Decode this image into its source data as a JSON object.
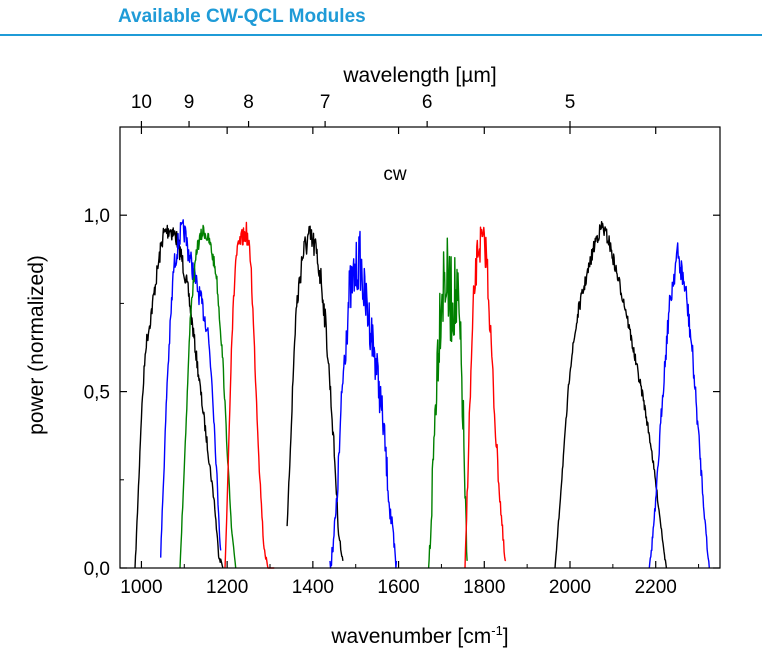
{
  "header": {
    "title": "Available  CW-QCL Modules",
    "accent_color": "#1f9bd7"
  },
  "chart_data": {
    "type": "line",
    "annotation": "cw",
    "xlabel": "wavenumber [cm",
    "xlabel_superscript": "-1",
    "xlabel_suffix": "]",
    "ylabel": "power (normalized)",
    "top_axis_label": "wavelength [µm]",
    "xlim": [
      950,
      2350
    ],
    "ylim": [
      0,
      1.25
    ],
    "grid": false,
    "x_ticks": [
      1000,
      1200,
      1400,
      1600,
      1800,
      2000,
      2200
    ],
    "x_tick_labels": [
      "1000",
      "1200",
      "1400",
      "1600",
      "1800",
      "2000",
      "2200"
    ],
    "y_ticks": [
      0,
      0.5,
      1.0
    ],
    "y_tick_labels": [
      "0,0",
      "0,5",
      "1,0"
    ],
    "top_ticks_um": [
      10,
      9,
      8,
      7,
      6,
      5
    ],
    "top_tick_labels": [
      "10",
      "9",
      "8",
      "7",
      "6",
      "5"
    ],
    "series": [
      {
        "color": "#000000",
        "noise": 0.04,
        "x": [
          985,
          1000,
          1010,
          1020,
          1035,
          1050,
          1065,
          1080,
          1095,
          1110,
          1125,
          1140,
          1155,
          1170,
          1180,
          1190
        ],
        "y": [
          0.0,
          0.45,
          0.65,
          0.72,
          0.85,
          0.97,
          0.99,
          0.97,
          0.9,
          0.8,
          0.65,
          0.5,
          0.35,
          0.2,
          0.05,
          0.0
        ]
      },
      {
        "color": "#0000ff",
        "noise": 0.05,
        "x": [
          1045,
          1060,
          1075,
          1090,
          1100,
          1110,
          1125,
          1140,
          1155,
          1165,
          1175,
          1185
        ],
        "y": [
          0.05,
          0.55,
          0.88,
          0.98,
          0.99,
          0.93,
          0.85,
          0.78,
          0.7,
          0.55,
          0.3,
          0.05
        ]
      },
      {
        "color": "#008000",
        "noise": 0.03,
        "x": [
          1090,
          1100,
          1115,
          1130,
          1145,
          1160,
          1175,
          1190,
          1200,
          1210,
          1220
        ],
        "y": [
          0.0,
          0.3,
          0.75,
          0.93,
          0.98,
          0.94,
          0.85,
          0.6,
          0.35,
          0.12,
          0.0
        ]
      },
      {
        "color": "#ff0000",
        "noise": 0.04,
        "x": [
          1195,
          1200,
          1210,
          1220,
          1230,
          1245,
          1255,
          1265,
          1275,
          1285,
          1295,
          1305,
          1310
        ],
        "y": [
          0.0,
          0.2,
          0.65,
          0.9,
          0.95,
          0.98,
          0.9,
          0.6,
          0.3,
          0.08,
          0.0,
          0.0,
          0.0
        ]
      },
      {
        "color": "#000000",
        "noise": 0.06,
        "x": [
          1340,
          1350,
          1360,
          1375,
          1390,
          1405,
          1420,
          1430,
          1440,
          1450,
          1460,
          1470
        ],
        "y": [
          0.12,
          0.45,
          0.75,
          0.92,
          0.98,
          0.95,
          0.85,
          0.72,
          0.55,
          0.35,
          0.12,
          0.02
        ]
      },
      {
        "color": "#0000ff",
        "noise": 0.12,
        "x": [
          1440,
          1455,
          1470,
          1485,
          1500,
          1510,
          1520,
          1535,
          1550,
          1565,
          1580,
          1595
        ],
        "y": [
          0.02,
          0.2,
          0.6,
          0.85,
          0.92,
          0.96,
          0.85,
          0.75,
          0.62,
          0.45,
          0.2,
          0.02
        ]
      },
      {
        "color": "#008000",
        "noise": 0.2,
        "x": [
          1670,
          1680,
          1690,
          1700,
          1710,
          1720,
          1730,
          1740,
          1750,
          1760
        ],
        "y": [
          0.0,
          0.35,
          0.7,
          0.92,
          0.97,
          0.88,
          0.9,
          0.85,
          0.55,
          0.02
        ]
      },
      {
        "color": "#ff0000",
        "noise": 0.08,
        "x": [
          1755,
          1765,
          1775,
          1785,
          1795,
          1805,
          1815,
          1825,
          1835,
          1845,
          1850
        ],
        "y": [
          0.0,
          0.45,
          0.8,
          0.96,
          0.98,
          0.95,
          0.7,
          0.45,
          0.25,
          0.08,
          0.02
        ]
      },
      {
        "color": "#000000",
        "noise": 0.03,
        "x": [
          1965,
          1980,
          2000,
          2020,
          2040,
          2060,
          2075,
          2090,
          2110,
          2130,
          2150,
          2170,
          2190,
          2210,
          2225
        ],
        "y": [
          0.0,
          0.25,
          0.58,
          0.75,
          0.85,
          0.95,
          0.99,
          0.95,
          0.85,
          0.75,
          0.62,
          0.5,
          0.35,
          0.15,
          0.0
        ]
      },
      {
        "color": "#0000ff",
        "noise": 0.06,
        "x": [
          2185,
          2200,
          2215,
          2230,
          2240,
          2250,
          2260,
          2270,
          2285,
          2300,
          2315,
          2325
        ],
        "y": [
          0.0,
          0.2,
          0.5,
          0.75,
          0.85,
          0.93,
          0.88,
          0.82,
          0.65,
          0.4,
          0.15,
          0.0
        ]
      }
    ]
  }
}
